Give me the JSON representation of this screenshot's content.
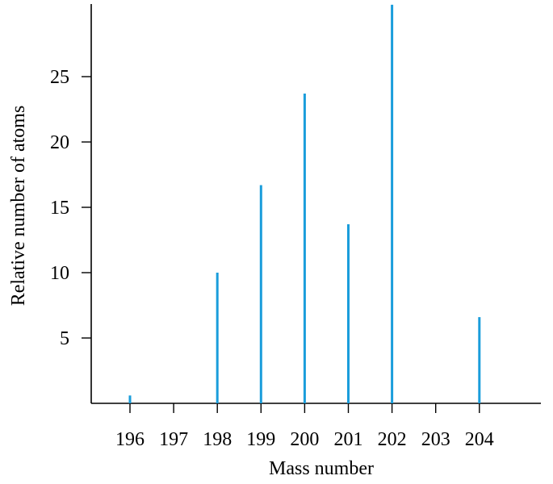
{
  "chart_data": {
    "type": "bar",
    "title": "",
    "xlabel": "Mass number",
    "ylabel": "Relative number of atoms",
    "categories": [
      "196",
      "197",
      "198",
      "199",
      "200",
      "201",
      "202",
      "203",
      "204"
    ],
    "values": [
      0.6,
      0,
      10.0,
      16.7,
      23.7,
      13.7,
      30.5,
      0,
      6.6
    ],
    "yticks": [
      "5",
      "10",
      "15",
      "20",
      "25"
    ],
    "ytick_values": [
      5,
      10,
      15,
      20,
      25
    ],
    "ylim": [
      0,
      30.5
    ],
    "grid": false,
    "bar_color": "#1a9ddb"
  }
}
